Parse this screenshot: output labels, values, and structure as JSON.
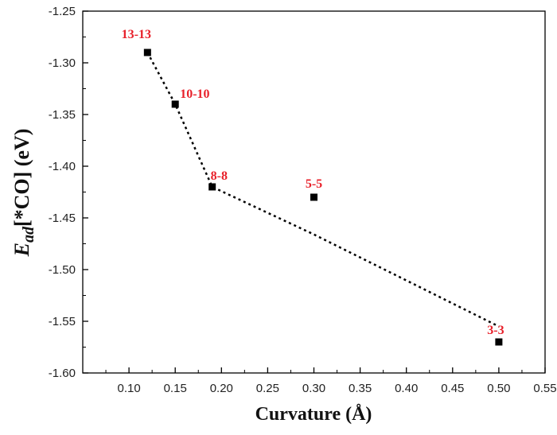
{
  "chart_data": {
    "type": "scatter",
    "title": "",
    "xlabel": "Curvature (Å)",
    "ylabel_main": "E",
    "ylabel_sub": "ad",
    "ylabel_rest": "[*CO] (eV)",
    "xlim": [
      0.05,
      0.55
    ],
    "ylim": [
      -1.6,
      -1.25
    ],
    "xticks": [
      "0.10",
      "0.15",
      "0.20",
      "0.25",
      "0.30",
      "0.35",
      "0.40",
      "0.45",
      "0.50",
      "0.55"
    ],
    "yticks": [
      "-1.25",
      "-1.30",
      "-1.35",
      "-1.40",
      "-1.45",
      "-1.50",
      "-1.55",
      "-1.60"
    ],
    "points": [
      {
        "label": "13-13",
        "x": 0.12,
        "y": -1.29
      },
      {
        "label": "10-10",
        "x": 0.15,
        "y": -1.34
      },
      {
        "label": "8-8",
        "x": 0.19,
        "y": -1.42
      },
      {
        "label": "5-5",
        "x": 0.3,
        "y": -1.43
      },
      {
        "label": "3-3",
        "x": 0.5,
        "y": -1.57
      }
    ],
    "trend_line": [
      {
        "x": 0.12,
        "y": -1.29
      },
      {
        "x": 0.15,
        "y": -1.34
      },
      {
        "x": 0.19,
        "y": -1.42
      },
      {
        "x": 0.3,
        "y": -1.466
      },
      {
        "x": 0.5,
        "y": -1.555
      }
    ],
    "colors": {
      "marker": "#000000",
      "label": "#e8202a",
      "line": "#000000"
    }
  }
}
